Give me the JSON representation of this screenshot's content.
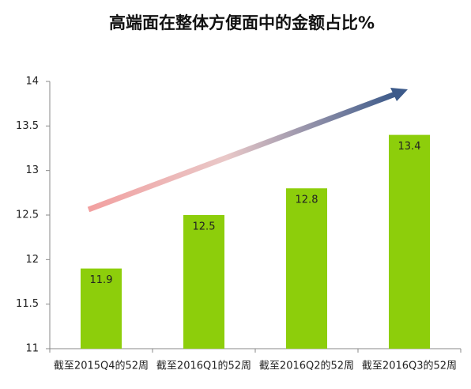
{
  "chart_data": {
    "type": "bar",
    "title": "高端面在整体方便面中的金额占比%",
    "categories": [
      "截至2015Q4的52周",
      "截至2016Q1的52周",
      "截至2016Q2的52周",
      "截至2016Q3的52周"
    ],
    "values": [
      11.9,
      12.5,
      12.8,
      13.4
    ],
    "color": "#8dce0b",
    "ylim": [
      11,
      14
    ],
    "yticks": [
      11,
      11.5,
      12,
      12.5,
      13,
      13.5,
      14
    ],
    "grid": false
  }
}
